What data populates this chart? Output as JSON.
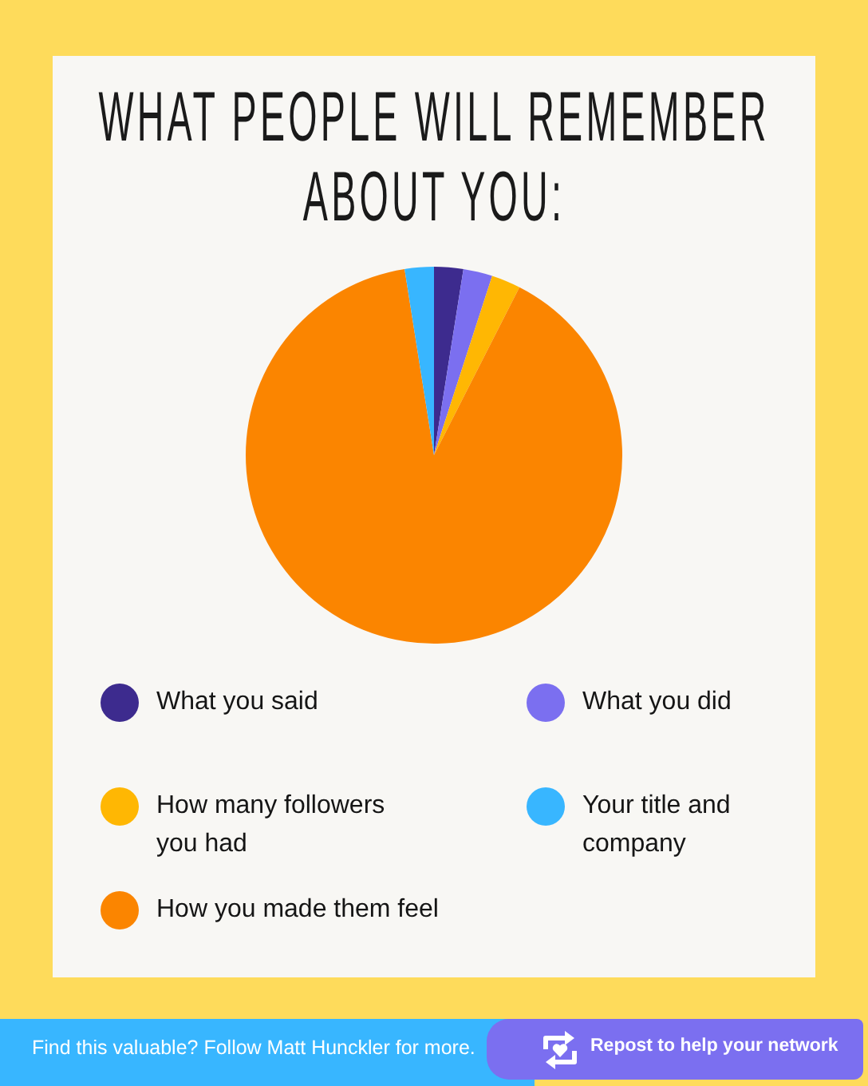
{
  "chart_data": {
    "type": "pie",
    "title": "WHAT PEOPLE WILL REMEMBER ABOUT YOU:",
    "categories": [
      "What you said",
      "What you did",
      "How many followers you had",
      "How you made them feel",
      "Your title and company"
    ],
    "values": [
      2.5,
      2.5,
      2.5,
      90,
      2.5
    ],
    "colors": [
      "#3d2b8e",
      "#7b6ff0",
      "#ffb703",
      "#fb8500",
      "#38b6ff"
    ],
    "legend": "bottom",
    "annotations": [
      "Find this valuable? Follow Matt Hunckler for more.",
      "Repost to help your network"
    ]
  }
}
